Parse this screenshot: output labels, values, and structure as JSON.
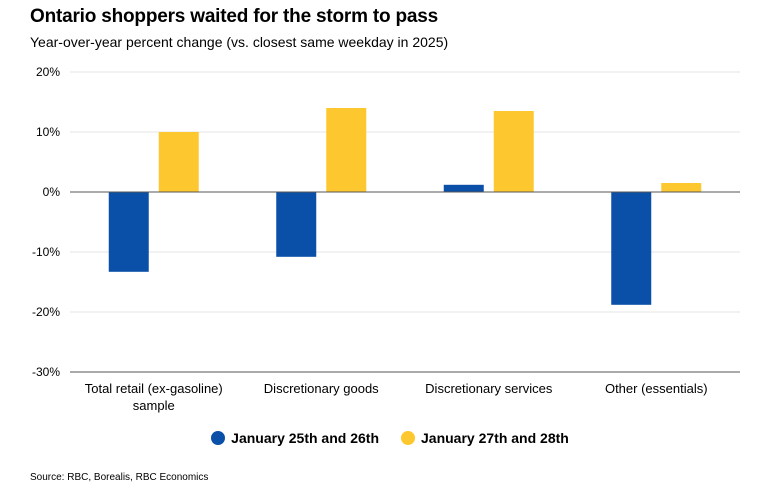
{
  "header": {
    "title": "Ontario shoppers waited for the storm to pass",
    "subtitle": "Year-over-year percent change (vs. closest same weekday in 2025)"
  },
  "source": "Source: RBC, Borealis, RBC Economics",
  "colors": {
    "series1": "#0a4fa8",
    "series2": "#fdc82f",
    "grid": "#e6e6e6",
    "axis": "#555555"
  },
  "chart_data": {
    "type": "bar",
    "title": "Ontario shoppers waited for the storm to pass",
    "subtitle": "Year-over-year percent change (vs. closest same weekday in 2025)",
    "xlabel": "",
    "ylabel": "",
    "ylim": [
      -30,
      20
    ],
    "yticks": [
      20,
      10,
      0,
      -10,
      -20,
      -30
    ],
    "ytick_labels": [
      "20%",
      "10%",
      "0%",
      "-10%",
      "-20%",
      "-30%"
    ],
    "categories": [
      [
        "Total retail (ex-gasoline)",
        "sample"
      ],
      [
        "Discretionary goods"
      ],
      [
        "Discretionary services"
      ],
      [
        "Other (essentials)"
      ]
    ],
    "series": [
      {
        "name": "January 25th and 26th",
        "color": "#0a4fa8",
        "values": [
          -13.3,
          -10.8,
          1.2,
          -18.8
        ]
      },
      {
        "name": "January 27th and 28th",
        "color": "#fdc82f",
        "values": [
          10.0,
          14.0,
          13.5,
          1.5
        ]
      }
    ],
    "legend_position": "bottom",
    "grid": true
  }
}
